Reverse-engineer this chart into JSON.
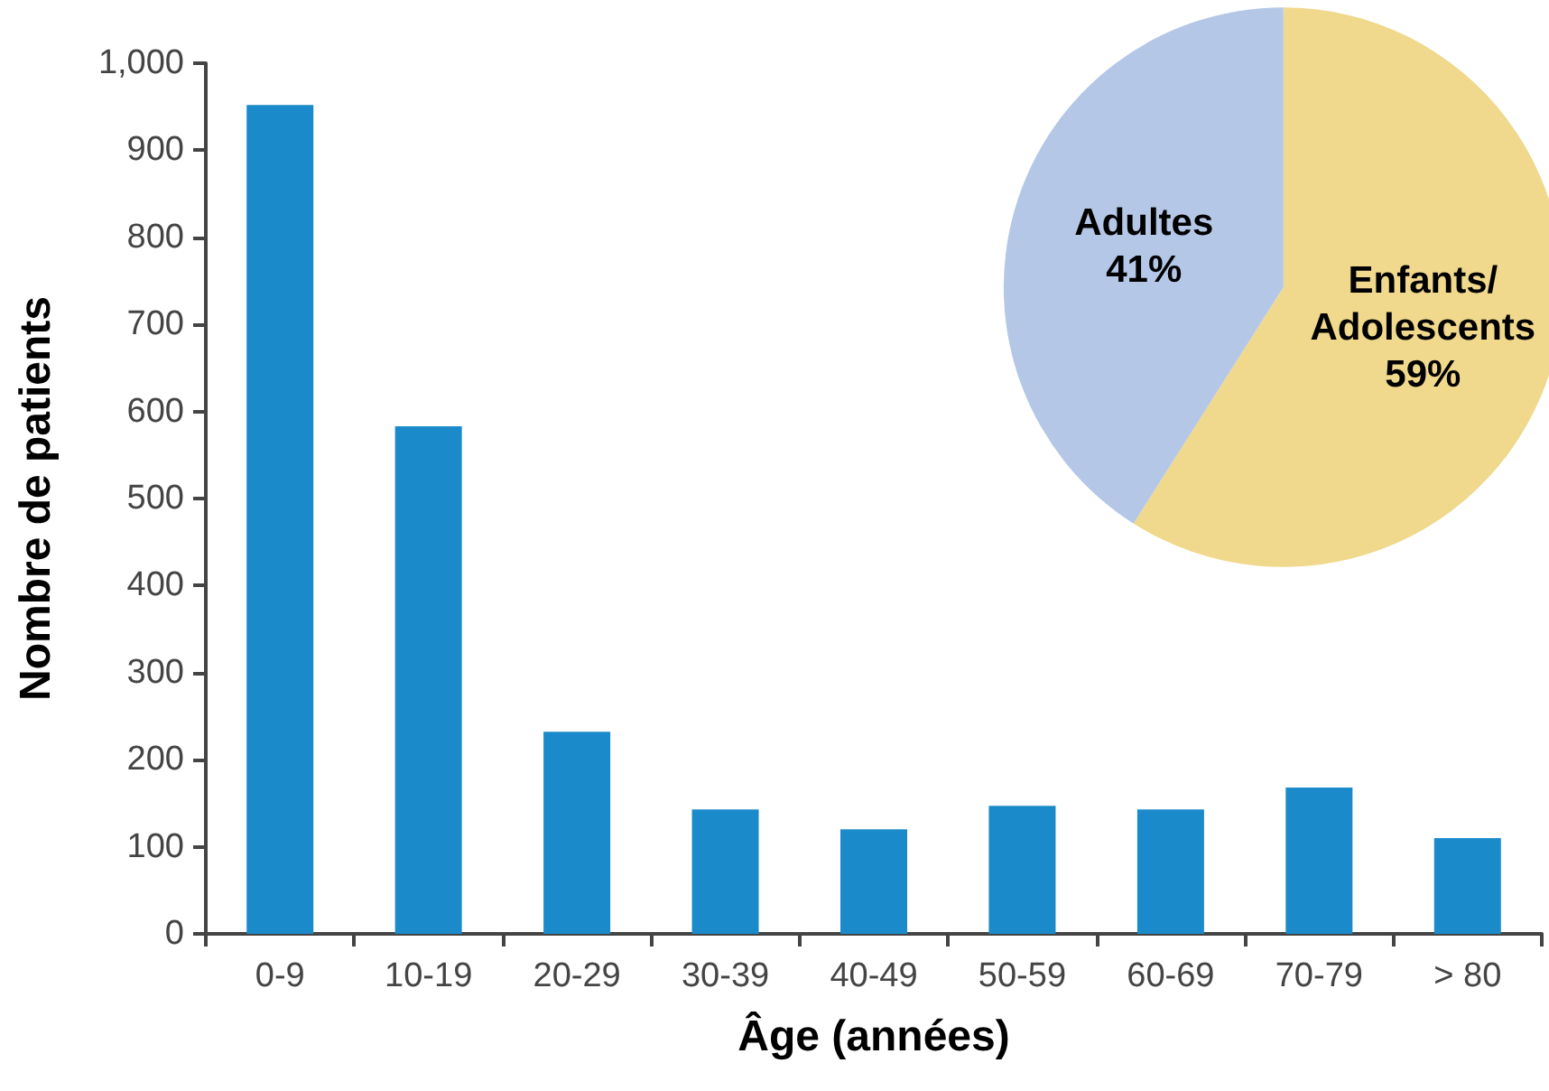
{
  "chart_data": [
    {
      "type": "bar",
      "xlabel": "Âge (années)",
      "ylabel": "Nombre de patients",
      "categories": [
        "0-9",
        "10-19",
        "20-29",
        "30-39",
        "40-49",
        "50-59",
        "60-69",
        "70-79",
        "> 80"
      ],
      "values": [
        952,
        583,
        232,
        143,
        120,
        147,
        143,
        168,
        110
      ],
      "color": "#1a8aca",
      "ylim": [
        0,
        1000
      ],
      "yticks": [
        0,
        100,
        200,
        300,
        400,
        500,
        600,
        700,
        800,
        900,
        {
          "value": 1000,
          "label": "1,000"
        }
      ],
      "grid": false,
      "legend": false
    },
    {
      "type": "pie",
      "categories": [
        "Enfants/\nAdolescents",
        "Adultes"
      ],
      "values": [
        59,
        41
      ],
      "value_labels": [
        "59%",
        "41%"
      ],
      "colors": [
        "#f0d98c",
        "#b4c7e7"
      ],
      "legend": false
    }
  ]
}
